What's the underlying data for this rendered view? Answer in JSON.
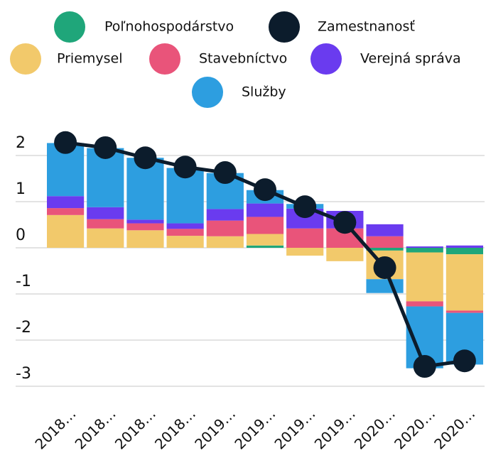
{
  "chart_data": {
    "type": "bar",
    "stacked": true,
    "categories": [
      "2018…",
      "2018…",
      "2018…",
      "2018…",
      "2019…",
      "2019…",
      "2019…",
      "2019…",
      "2020…",
      "2020…",
      "2020…"
    ],
    "series": [
      {
        "name": "Poľnohospodárstvo",
        "color": "#1fa67a",
        "values": [
          0,
          0,
          0,
          0,
          0,
          0.05,
          0,
          0,
          -0.06,
          -0.1,
          -0.14
        ]
      },
      {
        "name": "Zamestnanosť",
        "color": "#0c1c2c",
        "type": "line",
        "values": [
          2.28,
          2.17,
          1.95,
          1.75,
          1.63,
          1.26,
          0.89,
          0.55,
          -0.43,
          -2.57,
          -2.45
        ]
      },
      {
        "name": "Priemysel",
        "color": "#f2c96b",
        "values": [
          0.71,
          0.42,
          0.38,
          0.26,
          0.25,
          0.25,
          -0.17,
          -0.29,
          -0.62,
          -1.06,
          -1.22
        ]
      },
      {
        "name": "Stavebníctvo",
        "color": "#e9547a",
        "values": [
          0.15,
          0.2,
          0.15,
          0.15,
          0.34,
          0.37,
          0.42,
          0.42,
          0.25,
          -0.11,
          -0.05
        ]
      },
      {
        "name": "Verejná správa",
        "color": "#6a3bef",
        "values": [
          0.26,
          0.26,
          0.08,
          0.12,
          0.25,
          0.29,
          0.43,
          0.38,
          0.26,
          0.03,
          0.05
        ]
      },
      {
        "name": "Služby",
        "color": "#2d9ee0",
        "values": [
          1.15,
          1.28,
          1.34,
          1.2,
          0.78,
          0.29,
          0.1,
          0,
          -0.3,
          -1.34,
          -1.12
        ]
      }
    ],
    "ylim": [
      -3.25,
      2.48
    ],
    "yticks": [
      -3,
      -2,
      -1,
      0,
      1,
      2
    ],
    "grid": true,
    "legend": "top"
  }
}
